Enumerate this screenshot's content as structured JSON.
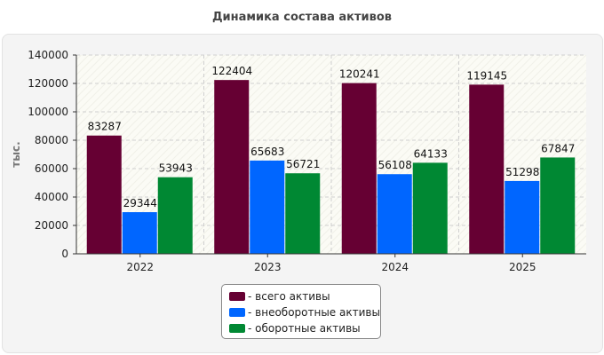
{
  "chart_data": {
    "type": "bar",
    "title": "Динамика состава активов",
    "ylabel": "тыс.",
    "xlabel": "",
    "categories": [
      "2022",
      "2023",
      "2024",
      "2025"
    ],
    "series": [
      {
        "name": "всего активы",
        "color": "#660033",
        "values": [
          83287,
          122404,
          120241,
          119145
        ]
      },
      {
        "name": "внеоборотные активы",
        "color": "#0066ff",
        "values": [
          29344,
          65683,
          56108,
          51298
        ]
      },
      {
        "name": "оборотные активы",
        "color": "#008833",
        "values": [
          53943,
          56721,
          64133,
          67847
        ]
      }
    ],
    "ylim": [
      0,
      140000
    ],
    "yticks": [
      0,
      20000,
      40000,
      60000,
      80000,
      100000,
      120000,
      140000
    ],
    "grid": true,
    "legend_position": "bottom-center"
  },
  "legend_labels": [
    "- всего активы",
    "- внеоборотные активы",
    "- оборотные активы"
  ]
}
